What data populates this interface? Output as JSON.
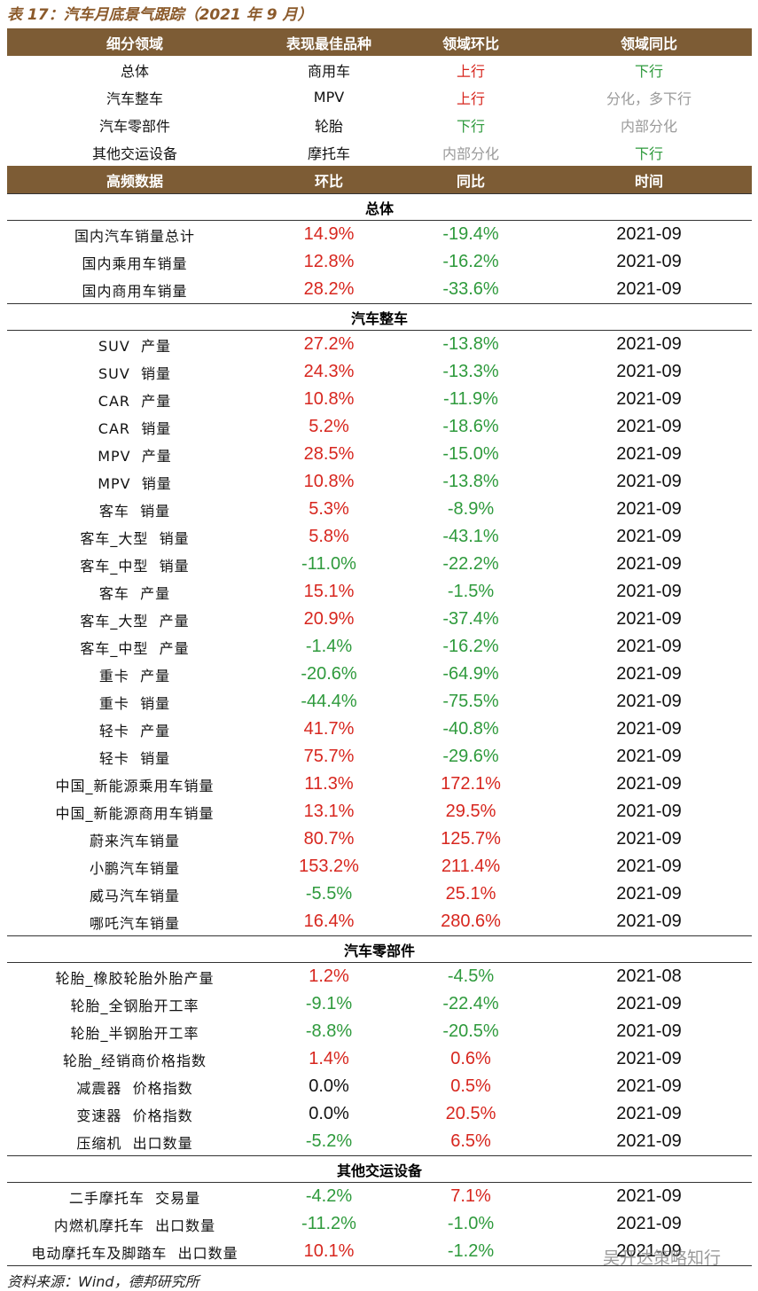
{
  "title": "表 17：汽车月底景气跟踪（2021 年 9 月）",
  "summary": {
    "header": [
      "细分领域",
      "表现最佳品种",
      "领域环比",
      "领域同比"
    ],
    "rows": [
      [
        "总体",
        "商用车",
        {
          "text": "上行",
          "color": "#d7261e"
        },
        {
          "text": "下行",
          "color": "#2e9a3c"
        }
      ],
      [
        "汽车整车",
        "MPV",
        {
          "text": "上行",
          "color": "#d7261e"
        },
        {
          "text": "分化，多下行",
          "color": "#9a9a9a"
        }
      ],
      [
        "汽车零部件",
        "轮胎",
        {
          "text": "下行",
          "color": "#2e9a3c"
        },
        {
          "text": "内部分化",
          "color": "#9a9a9a"
        }
      ],
      [
        "其他交运设备",
        "摩托车",
        {
          "text": "内部分化",
          "color": "#9a9a9a"
        },
        {
          "text": "下行",
          "color": "#2e9a3c"
        }
      ]
    ]
  },
  "detail": {
    "header": [
      "高频数据",
      "环比",
      "同比",
      "时间"
    ],
    "sections": [
      {
        "title": "总体",
        "rows": [
          [
            "国内汽车销量总计",
            "14.9%",
            "-19.4%",
            "2021-09"
          ],
          [
            "国内乘用车销量",
            "12.8%",
            "-16.2%",
            "2021-09"
          ],
          [
            "国内商用车销量",
            "28.2%",
            "-33.6%",
            "2021-09"
          ]
        ]
      },
      {
        "title": "汽车整车",
        "rows": [
          [
            "SUV  产量",
            "27.2%",
            "-13.8%",
            "2021-09"
          ],
          [
            "SUV  销量",
            "24.3%",
            "-13.3%",
            "2021-09"
          ],
          [
            "CAR  产量",
            "10.8%",
            "-11.9%",
            "2021-09"
          ],
          [
            "CAR  销量",
            "5.2%",
            "-18.6%",
            "2021-09"
          ],
          [
            "MPV  产量",
            "28.5%",
            "-15.0%",
            "2021-09"
          ],
          [
            "MPV  销量",
            "10.8%",
            "-13.8%",
            "2021-09"
          ],
          [
            "客车  销量",
            "5.3%",
            "-8.9%",
            "2021-09"
          ],
          [
            "客车_大型  销量",
            "5.8%",
            "-43.1%",
            "2021-09"
          ],
          [
            "客车_中型  销量",
            "-11.0%",
            "-22.2%",
            "2021-09"
          ],
          [
            "客车  产量",
            "15.1%",
            "-1.5%",
            "2021-09"
          ],
          [
            "客车_大型  产量",
            "20.9%",
            "-37.4%",
            "2021-09"
          ],
          [
            "客车_中型  产量",
            "-1.4%",
            "-16.2%",
            "2021-09"
          ],
          [
            "重卡  产量",
            "-20.6%",
            "-64.9%",
            "2021-09"
          ],
          [
            "重卡  销量",
            "-44.4%",
            "-75.5%",
            "2021-09"
          ],
          [
            "轻卡  产量",
            "41.7%",
            "-40.8%",
            "2021-09"
          ],
          [
            "轻卡  销量",
            "75.7%",
            "-29.6%",
            "2021-09"
          ],
          [
            "中国_新能源乘用车销量",
            "11.3%",
            "172.1%",
            "2021-09"
          ],
          [
            "中国_新能源商用车销量",
            "13.1%",
            "29.5%",
            "2021-09"
          ],
          [
            "蔚来汽车销量",
            "80.7%",
            "125.7%",
            "2021-09"
          ],
          [
            "小鹏汽车销量",
            "153.2%",
            "211.4%",
            "2021-09"
          ],
          [
            "威马汽车销量",
            "-5.5%",
            "25.1%",
            "2021-09"
          ],
          [
            "哪吒汽车销量",
            "16.4%",
            "280.6%",
            "2021-09"
          ]
        ]
      },
      {
        "title": "汽车零部件",
        "rows": [
          [
            "轮胎_橡胶轮胎外胎产量",
            "1.2%",
            "-4.5%",
            "2021-08"
          ],
          [
            "轮胎_全钢胎开工率",
            "-9.1%",
            "-22.4%",
            "2021-09"
          ],
          [
            "轮胎_半钢胎开工率",
            "-8.8%",
            "-20.5%",
            "2021-09"
          ],
          [
            "轮胎_经销商价格指数",
            "1.4%",
            "0.6%",
            "2021-09"
          ],
          [
            "减震器  价格指数",
            "0.0%",
            "0.5%",
            "2021-09"
          ],
          [
            "变速器  价格指数",
            "0.0%",
            "20.5%",
            "2021-09"
          ],
          [
            "压缩机  出口数量",
            "-5.2%",
            "6.5%",
            "2021-09"
          ]
        ]
      },
      {
        "title": "其他交运设备",
        "rows": [
          [
            "二手摩托车  交易量",
            "-4.2%",
            "7.1%",
            "2021-09"
          ],
          [
            "内燃机摩托车  出口数量",
            "-11.2%",
            "-1.0%",
            "2021-09"
          ],
          [
            "电动摩托车及脚踏车  出口数量",
            "10.1%",
            "-1.2%",
            "2021-09"
          ]
        ]
      }
    ]
  },
  "source": "资料来源：Wind，德邦研究所",
  "watermark": "吴开达策略知行"
}
